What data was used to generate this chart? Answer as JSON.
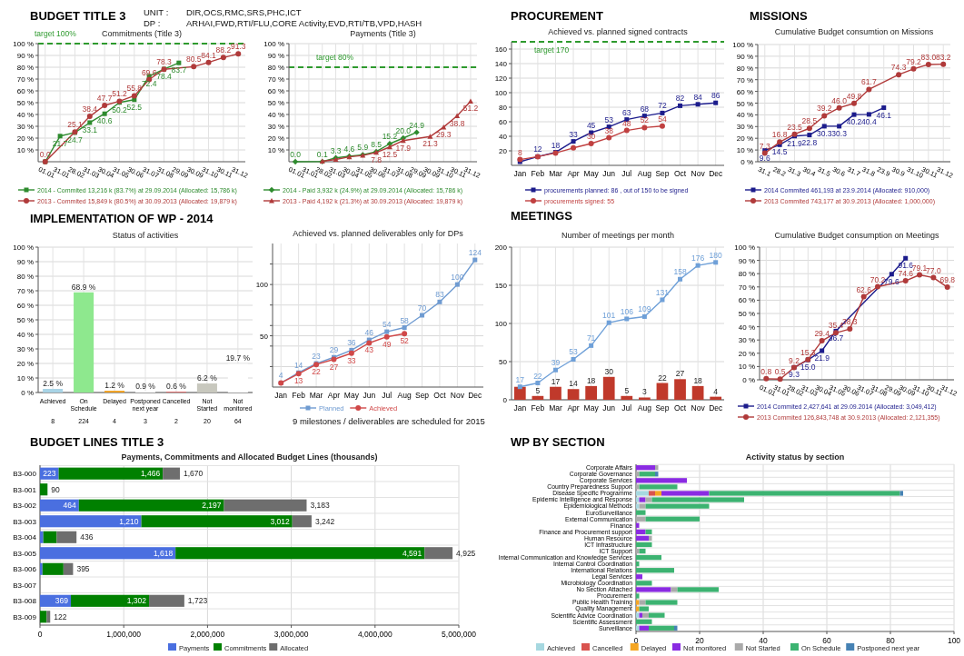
{
  "chart_data": [
    {
      "type": "line",
      "title": "BUDGET TITLE 3",
      "subtitle": "Commitments (Title 3)",
      "categories": [
        "01.01",
        "31.01",
        "28.02",
        "31.03",
        "30.04",
        "31.05",
        "30.06",
        "31.07",
        "31.08",
        "29.09",
        "30.09",
        "31.10",
        "30.11",
        "31.12"
      ],
      "series": [
        {
          "name": "2014 - Commited 13,216 k (83.7%) at 29.09.2014 (Allocated: 15,786 k)",
          "color": "#2e8b2e",
          "marker": "square",
          "values": [
            0.0,
            21.7,
            24.7,
            33.1,
            40.6,
            50.2,
            52.5,
            72.4,
            78.4,
            83.7,
            null,
            null,
            null,
            null
          ],
          "value_labels": [
            null,
            "21.7",
            "24.7",
            "33.1",
            "40.6",
            "50.2",
            "52.5",
            "72.4",
            "78.4",
            "83.7",
            null,
            null,
            null,
            null
          ]
        },
        {
          "name": "2013 - Commited 15,849 k (80.5%) at 30.09.2013 (Allocated: 19,879 k)",
          "color": "#b03a3a",
          "marker": "circle",
          "values": [
            0.0,
            null,
            25.1,
            38.4,
            47.7,
            51.2,
            55.8,
            69.6,
            78.3,
            null,
            80.5,
            84.1,
            88.2,
            91.3
          ],
          "value_labels": [
            "0.0",
            null,
            "25.1",
            "38.4",
            "47.7",
            "51.2",
            "55.8",
            "69.6",
            "78.3",
            null,
            "80.5",
            "84.1",
            "88.2",
            "91.3"
          ]
        }
      ],
      "ylim": [
        0,
        100
      ],
      "yticks": [
        {
          "value": 10,
          "label": "10 %"
        },
        {
          "value": 20,
          "label": "20 %"
        },
        {
          "value": 30,
          "label": "30 %"
        },
        {
          "value": 40,
          "label": "40 %"
        },
        {
          "value": 50,
          "label": "50 %"
        },
        {
          "value": 60,
          "label": "60 %"
        },
        {
          "value": 70,
          "label": "70 %"
        },
        {
          "value": 80,
          "label": "80 %"
        },
        {
          "value": 90,
          "label": "90 %"
        },
        {
          "value": 100,
          "label": "100 %"
        }
      ],
      "grid": true,
      "legend": "bottom",
      "ref_lines": [
        {
          "axis": "y",
          "value": 100,
          "label": "target 100%",
          "color": "#2e9a2e",
          "line_style": "dashed"
        }
      ],
      "annotations": [
        "UNIT :",
        "DIR,OCS,RMC,SRS,PHC,ICT",
        "DP :",
        "ARHAI,FWD,RTI/FLU,CORE Activity,EVD,RTI/TB,VPD,HASH"
      ]
    },
    {
      "type": "line",
      "subtitle": "Payments (Title 3)",
      "categories": [
        "01.01",
        "31.01",
        "28.02",
        "31.03",
        "30.04",
        "31.05",
        "30.06",
        "31.07",
        "31.08",
        "29.09",
        "30.09",
        "31.10",
        "30.11",
        "31.12"
      ],
      "series": [
        {
          "name": "2014 - Paid 3,932 k (24.9%) at 29.09.2014 (Allocated: 15,786 k)",
          "color": "#2e8b2e",
          "marker": "diamond",
          "values": [
            0.0,
            null,
            0.1,
            3.3,
            4.6,
            5.9,
            8.5,
            15.2,
            20.0,
            24.9,
            null,
            null,
            null,
            null
          ],
          "value_labels": [
            "0.0",
            null,
            "0.1",
            "3.3",
            "4.6",
            "5.9",
            "8.5",
            "15.2",
            "20.0",
            "24.9",
            null,
            null,
            null,
            null
          ]
        },
        {
          "name": "2013 - Paid 4,192 k (21.3%) at 30.09.2013 (Allocated: 19,879 k)",
          "color": "#b03a3a",
          "marker": "triangle",
          "values": [
            null,
            null,
            0.4,
            1.9,
            4.1,
            5.3,
            7.8,
            12.5,
            17.9,
            null,
            21.3,
            29.3,
            38.8,
            51.2
          ],
          "value_labels": [
            null,
            null,
            null,
            null,
            null,
            null,
            "7.8",
            "12.5",
            "17.9",
            null,
            "21.3",
            "29.3",
            "38.8",
            "51.2"
          ]
        }
      ],
      "ylim": [
        0,
        100
      ],
      "yticks": [
        {
          "value": 10,
          "label": "10 %"
        },
        {
          "value": 20,
          "label": "20 %"
        },
        {
          "value": 30,
          "label": "30 %"
        },
        {
          "value": 40,
          "label": "40 %"
        },
        {
          "value": 50,
          "label": "50 %"
        },
        {
          "value": 60,
          "label": "60 %"
        },
        {
          "value": 70,
          "label": "70 %"
        },
        {
          "value": 80,
          "label": "80 %"
        },
        {
          "value": 90,
          "label": "90 %"
        },
        {
          "value": 100,
          "label": "100 %"
        }
      ],
      "grid": true,
      "legend": "bottom",
      "ref_lines": [
        {
          "axis": "y",
          "value": 80,
          "label": "target 80%",
          "color": "#2e9a2e",
          "line_style": "dashed"
        }
      ]
    },
    {
      "type": "line",
      "title": "PROCUREMENT",
      "subtitle": "Achieved vs. planned signed contracts",
      "categories": [
        "Jan",
        "Feb",
        "Mar",
        "Apr",
        "May",
        "Jun",
        "Jul",
        "Aug",
        "Sep",
        "Oct",
        "Nov",
        "Dec"
      ],
      "series": [
        {
          "name": "procurements planned: 86 , out of 150 to be signed",
          "color": "#1c1c8c",
          "marker": "square",
          "values": [
            5,
            12,
            18,
            33,
            45,
            53,
            63,
            68,
            72,
            82,
            84,
            86
          ],
          "value_labels": [
            null,
            "12",
            "18",
            "33",
            "45",
            "53",
            "63",
            "68",
            "72",
            "82",
            "84",
            "86"
          ]
        },
        {
          "name": "procurements signed: 55",
          "color": "#c04040",
          "marker": "circle",
          "values": [
            8,
            12,
            17,
            24,
            30,
            38,
            48,
            52,
            54,
            null,
            null,
            null
          ],
          "value_labels": [
            "8",
            null,
            null,
            null,
            "30",
            "38",
            "48",
            "52",
            "54",
            null,
            null,
            null
          ]
        }
      ],
      "ylim": [
        0,
        170
      ],
      "yticks": [
        20,
        40,
        60,
        80,
        100,
        120,
        140,
        160
      ],
      "grid": true,
      "legend": "bottom",
      "ref_lines": [
        {
          "axis": "y",
          "value": 170,
          "label": "target 170",
          "color": "#2e9a2e",
          "line_style": "dashed"
        }
      ]
    },
    {
      "type": "line",
      "title": "MISSIONS",
      "subtitle": "Cumulative Budget consumtion on Missions",
      "categories": [
        "31.1",
        "28.2",
        "31.3",
        "30.4",
        "31.5",
        "30.6",
        "31.7",
        "31.8",
        "23.9",
        "30.9",
        "31.10",
        "30.11",
        "31.12"
      ],
      "series": [
        {
          "name": "2014 Commited 461,193 at 23.9.2014 (Allocated: 910,000)",
          "color": "#1c1c8c",
          "marker": "square",
          "values": [
            9.6,
            14.5,
            21.9,
            22.8,
            30.3,
            30.3,
            40.2,
            40.4,
            46.1,
            null,
            null,
            null,
            null
          ],
          "value_labels": [
            "9.6",
            "14.5",
            "21.9",
            "22.8",
            "30.3",
            "30.3",
            "40.2",
            "40.4",
            "46.1",
            null,
            null,
            null,
            null
          ]
        },
        {
          "name": "2013 Commited 743,177 at 30.9.2013 (Allocated: 1,000,000)",
          "color": "#b03a3a",
          "marker": "circle",
          "values": [
            7.3,
            16.8,
            23.5,
            28.5,
            39.2,
            46.0,
            49.8,
            61.7,
            null,
            74.3,
            79.2,
            83.0,
            83.2
          ],
          "value_labels": [
            "7.3",
            "16.8",
            "23.5",
            "28.5",
            "39.2",
            "46.0",
            "49.8",
            "61.7",
            null,
            "74.3",
            "79.2",
            "83.0",
            "83.2"
          ]
        }
      ],
      "ylim": [
        0,
        100
      ],
      "yticks": [
        {
          "value": 0,
          "label": "0 %"
        },
        {
          "value": 10,
          "label": "10 %"
        },
        {
          "value": 20,
          "label": "20 %"
        },
        {
          "value": 30,
          "label": "30 %"
        },
        {
          "value": 40,
          "label": "40 %"
        },
        {
          "value": 50,
          "label": "50 %"
        },
        {
          "value": 60,
          "label": "60 %"
        },
        {
          "value": 70,
          "label": "70 %"
        },
        {
          "value": 80,
          "label": "80 %"
        },
        {
          "value": 90,
          "label": "90 %"
        },
        {
          "value": 100,
          "label": "100 %"
        }
      ],
      "grid": true,
      "legend": "bottom"
    },
    {
      "type": "bar",
      "title": "IMPLEMENTATION OF WP - 2014",
      "subtitle": "Status of activities",
      "categories": [
        "Achieved",
        "On Schedule",
        "Delayed",
        "Postponed next year",
        "Cancelled",
        "Not Started",
        "Not monitored"
      ],
      "values": [
        2.5,
        68.9,
        1.2,
        0.9,
        0.6,
        6.2,
        19.7
      ],
      "colors": [
        "#a8d4e6",
        "#8ee88e",
        "#f0a020",
        "#ffffff",
        "#e07070",
        "#c8c8be",
        "#ffffff"
      ],
      "value_labels": [
        "2.5 %",
        "68.9 %",
        "1.2 %",
        "0.9 %",
        "0.6 %",
        "6.2 %",
        "19.7 %"
      ],
      "ylim": [
        0,
        100
      ],
      "yticks": [
        {
          "value": 0,
          "label": "0 %"
        },
        {
          "value": 10,
          "label": "10 %"
        },
        {
          "value": 20,
          "label": "20 %"
        },
        {
          "value": 30,
          "label": "30 %"
        },
        {
          "value": 40,
          "label": "40 %"
        },
        {
          "value": 50,
          "label": "50 %"
        },
        {
          "value": 60,
          "label": "60 %"
        },
        {
          "value": 70,
          "label": "70 %"
        },
        {
          "value": 80,
          "label": "80 %"
        },
        {
          "value": 90,
          "label": "90 %"
        },
        {
          "value": 100,
          "label": "100 %"
        }
      ],
      "grid": true,
      "annotations": [
        "8",
        "224",
        "4",
        "3",
        "2",
        "20",
        "64"
      ]
    },
    {
      "type": "line",
      "subtitle": "Achieved vs. planned deliverables only for DPs",
      "categories": [
        "Jan",
        "Feb",
        "Mar",
        "Apr",
        "May",
        "Jun",
        "Jul",
        "Aug",
        "Sep",
        "Oct",
        "Nov",
        "Dec"
      ],
      "series": [
        {
          "name": "Planned",
          "color": "#6f9bd1",
          "marker": "square",
          "values": [
            4,
            14,
            23,
            29,
            36,
            46,
            54,
            58,
            70,
            83,
            100,
            124
          ],
          "value_labels": [
            "4",
            "14",
            "23",
            "29",
            "36",
            "46",
            "54",
            "58",
            "70",
            "83",
            "100",
            "124"
          ]
        },
        {
          "name": "Achieved",
          "color": "#d04848",
          "marker": "circle",
          "values": [
            4,
            13,
            22,
            27,
            33,
            43,
            49,
            52,
            null,
            null,
            null,
            null
          ],
          "value_labels": [
            null,
            "13",
            "22",
            "27",
            "33",
            "43",
            "49",
            "52",
            null,
            null,
            null,
            null
          ]
        }
      ],
      "ylim": [
        0,
        140
      ],
      "yticks": [
        {
          "value": 20,
          "label": null
        },
        {
          "value": 40,
          "label": null
        },
        50,
        {
          "value": 60,
          "label": null
        },
        {
          "value": 80,
          "label": null
        },
        100,
        {
          "value": 120,
          "label": null
        }
      ],
      "grid": true,
      "legend": "bottom",
      "annotations": [
        "9 milestones / deliverables are scheduled for 2015"
      ]
    },
    {
      "type": "bar",
      "title": "MEETINGS",
      "subtitle": "Number of meetings per month",
      "categories": [
        "Jan",
        "Feb",
        "Mar",
        "Apr",
        "May",
        "Jun",
        "Jul",
        "Aug",
        "Sep",
        "Oct",
        "Nov",
        "Dec"
      ],
      "series": [
        {
          "color": "#c0392b",
          "values": [
            17,
            5,
            17,
            14,
            18,
            30,
            5,
            3,
            22,
            27,
            18,
            4
          ],
          "value_labels": [
            null,
            "5",
            "17",
            "14",
            "18",
            "30",
            "5",
            "3",
            "22",
            "27",
            "18",
            "4"
          ]
        },
        {
          "type": "line",
          "color": "#6fa0d8",
          "marker": "square",
          "values": [
            17,
            22,
            39,
            53,
            71,
            101,
            106,
            109,
            131,
            158,
            176,
            180
          ],
          "value_labels": [
            "17",
            "22",
            "39",
            "53",
            "71",
            "101",
            "106",
            "109",
            "131",
            "158",
            "176",
            "180"
          ]
        }
      ],
      "ylim": [
        0,
        200
      ],
      "yticks": [
        0,
        50,
        100,
        150,
        200
      ],
      "grid": true
    },
    {
      "type": "line",
      "subtitle": "Cumulative Budget consumption on Meetings",
      "categories": [
        "01.01",
        "31.01",
        "28.02",
        "31.03",
        "30.04",
        "31.05",
        "30.06",
        "31.07",
        "31.08",
        "29.09",
        "30.09",
        "31.10",
        "30.11",
        "31.12"
      ],
      "series": [
        {
          "name": "2014 Commited 2,427,641 at 29.09.2014 (Allocated: 3,049,412)",
          "color": "#1c1c8c",
          "marker": "square",
          "values": [
            null,
            null,
            9.3,
            15.0,
            21.9,
            36.7,
            null,
            null,
            null,
            79.6,
            91.6,
            null,
            null,
            null
          ],
          "value_labels": [
            null,
            null,
            "9.3",
            "15.0",
            "21.9",
            "36.7",
            null,
            null,
            null,
            "79.6",
            "91.6",
            null,
            null,
            null
          ]
        },
        {
          "name": "2013 Commited 126,843,748 at 30.9.2013 (Allocated: 2,121,355)",
          "color": "#b03a3a",
          "marker": "circle",
          "values": [
            0.8,
            0.5,
            9.2,
            15.3,
            29.4,
            35.4,
            38.3,
            62.6,
            70.2,
            null,
            74.6,
            79.1,
            77.0,
            69.8
          ],
          "value_labels": [
            "0.8",
            "0.5",
            "9.2",
            "15.3",
            "29.4",
            "35.4",
            "38.3",
            "62.6",
            "70.2",
            null,
            "74.6",
            "79.1",
            "77.0",
            "69.8"
          ]
        }
      ],
      "ylim": [
        0,
        100
      ],
      "yticks": [
        {
          "value": 0,
          "label": "0 %"
        },
        {
          "value": 10,
          "label": "10 %"
        },
        {
          "value": 20,
          "label": "20 %"
        },
        {
          "value": 30,
          "label": "30 %"
        },
        {
          "value": 40,
          "label": "40 %"
        },
        {
          "value": 50,
          "label": "50 %"
        },
        {
          "value": 60,
          "label": "60 %"
        },
        {
          "value": 70,
          "label": "70 %"
        },
        {
          "value": 80,
          "label": "80 %"
        },
        {
          "value": 90,
          "label": "90 %"
        },
        {
          "value": 100,
          "label": "100 %"
        }
      ],
      "grid": true,
      "legend": "bottom"
    },
    {
      "type": "bar",
      "title": "BUDGET LINES TITLE 3",
      "subtitle": "Payments, Commitments and Allocated Budget Lines (thousands)",
      "orientation": "horizontal",
      "stacked": true,
      "categories": [
        "B3-000",
        "B3-001",
        "B3-002",
        "B3-003",
        "B3-004",
        "B3-005",
        "B3-006",
        "B3-007",
        "B3-008",
        "B3-009"
      ],
      "series": [
        {
          "name": "Payments",
          "color": "#4a6fe0",
          "values": [
            223000,
            null,
            464000,
            1210000,
            40000,
            1618000,
            30000,
            null,
            369000,
            null
          ]
        },
        {
          "name": "Commitments",
          "color": "#008000",
          "values": [
            1243000,
            90000,
            1733000,
            1802000,
            160000,
            2973000,
            250000,
            null,
            933000,
            80000
          ]
        },
        {
          "name": "Allocated",
          "color": "#6e6e6e",
          "values": [
            204000,
            null,
            986000,
            230000,
            236000,
            334000,
            115000,
            null,
            421000,
            42000
          ]
        }
      ],
      "annotations": [
        {
          "text": "223",
          "x": 223000,
          "y": "B3-000"
        },
        {
          "text": "1,466",
          "x": 1466000,
          "y": "B3-000"
        },
        {
          "text": "1,670",
          "x": 1670000,
          "y": "B3-000"
        },
        {
          "text": "90",
          "x": 90000,
          "y": "B3-001"
        },
        {
          "text": "464",
          "x": 464000,
          "y": "B3-002"
        },
        {
          "text": "2,197",
          "x": 2197000,
          "y": "B3-002"
        },
        {
          "text": "3,183",
          "x": 3183000,
          "y": "B3-002"
        },
        {
          "text": "1,210",
          "x": 1210000,
          "y": "B3-003"
        },
        {
          "text": "3,012",
          "x": 3012000,
          "y": "B3-003"
        },
        {
          "text": "3,242",
          "x": 3242000,
          "y": "B3-003"
        },
        {
          "text": "436",
          "x": 436000,
          "y": "B3-004"
        },
        {
          "text": "1,618",
          "x": 1618000,
          "y": "B3-005"
        },
        {
          "text": "4,591",
          "x": 4591000,
          "y": "B3-005"
        },
        {
          "text": "4,925",
          "x": 4925000,
          "y": "B3-005"
        },
        {
          "text": "395",
          "x": 395000,
          "y": "B3-006"
        },
        {
          "text": "369",
          "x": 369000,
          "y": "B3-008"
        },
        {
          "text": "1,302",
          "x": 1302000,
          "y": "B3-008"
        },
        {
          "text": "1,723",
          "x": 1723000,
          "y": "B3-008"
        },
        {
          "text": "122",
          "x": 122000,
          "y": "B3-009"
        }
      ],
      "xlim": [
        0,
        5000000
      ],
      "xticks": [
        0,
        {
          "value": 1000000,
          "label": "1,000,000"
        },
        {
          "value": 2000000,
          "label": "2,000,000"
        },
        {
          "value": 3000000,
          "label": "3,000,000"
        },
        {
          "value": 4000000,
          "label": "4,000,000"
        },
        {
          "value": 5000000,
          "label": "5,000,000"
        }
      ],
      "grid": true,
      "legend": "bottom"
    },
    {
      "type": "bar",
      "title": "WP BY SECTION",
      "subtitle": "Activity status by section",
      "orientation": "horizontal",
      "stacked": true,
      "categories": [
        "Corporate Affairs",
        "Corporate Governance",
        "Corporate Services",
        "Country Preparedness Support",
        "Disease Specific Programme",
        "Epidemic Intelligence and Response",
        "Epidemiological Methods",
        "EuroSurveillance",
        "External Communication",
        "Finance",
        "Finance and Procurement support",
        "Human Resource",
        "ICT Infrastructure",
        "ICT Support",
        "Internal Communication and Knowledge Services",
        "Internal Control Coordination",
        "International Relations",
        "Legal Services",
        "Microbiology Coordination",
        "No Section Attached",
        "Procurement",
        "Public Health Training",
        "Quality Management",
        "Scientific Advice Coordination",
        "Scientific Assessment",
        "Surveillance"
      ],
      "series": [
        {
          "name": "Achieved",
          "color": "#a6d8e0",
          "values": [
            null,
            null,
            null,
            null,
            4,
            1,
            1,
            null,
            null,
            null,
            null,
            null,
            null,
            null,
            null,
            null,
            null,
            null,
            null,
            null,
            null,
            null,
            null,
            1,
            null,
            1
          ]
        },
        {
          "name": "Cancelled",
          "color": "#d9534f",
          "values": [
            null,
            null,
            null,
            null,
            2,
            null,
            null,
            null,
            null,
            null,
            null,
            null,
            null,
            null,
            null,
            null,
            null,
            null,
            null,
            null,
            null,
            null,
            null,
            null,
            null,
            null
          ]
        },
        {
          "name": "Delayed",
          "color": "#f5a623",
          "values": [
            null,
            null,
            null,
            null,
            2,
            null,
            null,
            null,
            null,
            null,
            null,
            null,
            null,
            null,
            null,
            null,
            null,
            null,
            null,
            null,
            null,
            1,
            1,
            null,
            null,
            null
          ]
        },
        {
          "name": "Not monitored",
          "color": "#8a2be2",
          "values": [
            6,
            null,
            16,
            null,
            15,
            2,
            null,
            null,
            null,
            1,
            3,
            4,
            null,
            null,
            null,
            null,
            null,
            2,
            null,
            11,
            null,
            null,
            null,
            1,
            null,
            3
          ]
        },
        {
          "name": "Not Started",
          "color": "#aaaaaa",
          "values": [
            1,
            1,
            null,
            1,
            null,
            2,
            2,
            null,
            3,
            null,
            null,
            1,
            null,
            1,
            null,
            null,
            null,
            null,
            null,
            2,
            null,
            2,
            null,
            2,
            null,
            null
          ]
        },
        {
          "name": "On Schedule",
          "color": "#3cb371",
          "values": [
            null,
            5,
            null,
            12,
            60,
            29,
            20,
            3,
            17,
            null,
            2,
            null,
            5,
            2,
            8,
            1,
            12,
            null,
            5,
            13,
            1,
            10,
            3,
            5,
            5,
            8
          ]
        },
        {
          "name": "Postponed next year",
          "color": "#4682b4",
          "values": [
            null,
            1,
            null,
            null,
            1,
            null,
            null,
            null,
            null,
            null,
            null,
            null,
            null,
            null,
            null,
            null,
            null,
            null,
            null,
            null,
            null,
            null,
            null,
            null,
            null,
            1
          ]
        }
      ],
      "xlim": [
        0,
        100
      ],
      "xticks": [
        0,
        20,
        40,
        60,
        80,
        100
      ],
      "grid": true,
      "legend": "bottom"
    }
  ]
}
